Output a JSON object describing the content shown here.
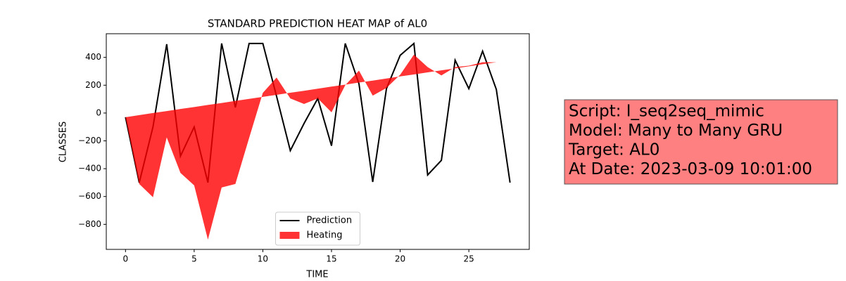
{
  "chart_data": {
    "type": "line",
    "title": "STANDARD PREDICTION HEAT MAP of AL0",
    "x_label": "TIME",
    "y_label": "CLASSES",
    "x": [
      0,
      1,
      2,
      3,
      4,
      5,
      6,
      7,
      8,
      9,
      10,
      11,
      12,
      13,
      14,
      15,
      16,
      17,
      18,
      19,
      20,
      21,
      22,
      23,
      24,
      25,
      26,
      27,
      28
    ],
    "series": [
      {
        "name": "Prediction",
        "color": "#000000",
        "kind": "line",
        "values": [
          -30,
          -500,
          -100,
          495,
          -310,
          -100,
          -500,
          500,
          40,
          500,
          500,
          120,
          -270,
          -75,
          105,
          -235,
          500,
          210,
          -495,
          175,
          415,
          500,
          -445,
          -340,
          380,
          175,
          445,
          170,
          -500
        ]
      },
      {
        "name": "Heating",
        "color": "#ff0000",
        "alpha": 0.8,
        "kind": "fill_between",
        "values": [
          -30,
          -510,
          -605,
          -175,
          -430,
          -520,
          -910,
          -535,
          -510,
          -180,
          145,
          255,
          105,
          65,
          105,
          5,
          200,
          305,
          125,
          180,
          275,
          420,
          330,
          270,
          330,
          340,
          365,
          365,
          380
        ],
        "base": [
          -30,
          -15,
          0,
          14,
          29,
          43,
          58,
          72,
          87,
          102,
          116,
          131,
          146,
          160,
          175,
          190,
          204,
          219,
          233,
          248,
          263,
          277,
          292,
          307,
          321,
          336,
          351,
          365,
          380
        ]
      }
    ],
    "xlim": [
      -1.4,
      29.4
    ],
    "ylim": [
      -980,
      570
    ],
    "xticks": [
      0,
      5,
      10,
      15,
      20,
      25
    ],
    "yticks": [
      {
        "value": -800,
        "label": "−800"
      },
      {
        "value": -600,
        "label": "−600"
      },
      {
        "value": -400,
        "label": "−400"
      },
      {
        "value": -200,
        "label": "−200"
      },
      0,
      200,
      400
    ],
    "grid": false,
    "legend": "lower center",
    "annotation": {
      "lines": [
        "Script: I_seq2seq_mimic",
        "Model: Many to Many GRU",
        "Target: AL0",
        "At Date: 2023-03-09 10:01:00"
      ],
      "color": "#ff8080"
    }
  }
}
